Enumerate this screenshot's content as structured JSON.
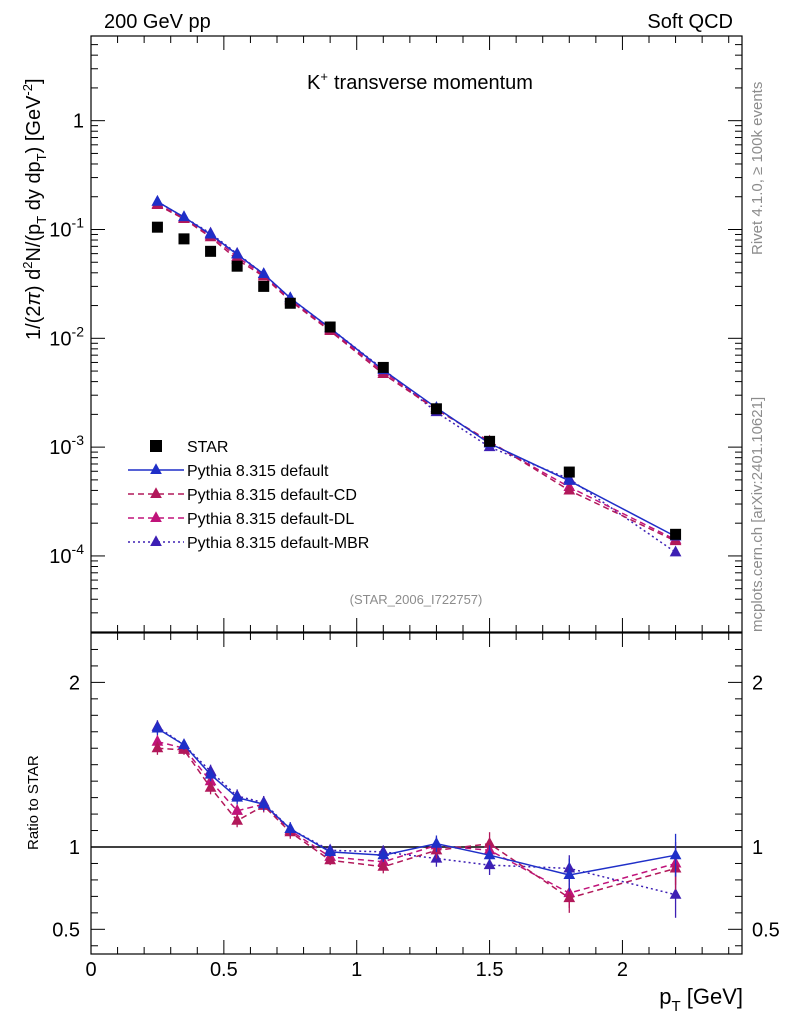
{
  "header": {
    "left_label": "200 GeV pp",
    "right_label": "Soft QCD",
    "title_particle": "K",
    "title_charge": "+",
    "title_rest": "transverse momentum",
    "analysis_id": "(STAR_2006_I722757)",
    "side_label_top": "Rivet 4.1.0, ≥ 100k events",
    "side_label_bottom": "mcplots.cern.ch [arXiv:2401.10621]"
  },
  "axes": {
    "top_ylabel": "1/(2π)  d²N/(p_T dy dp_T) [GeV⁻²]",
    "bottom_ylabel": "Ratio to STAR",
    "xlabel": "p_T [GeV]"
  },
  "chart_data": [
    {
      "type": "scatter",
      "panel": "main",
      "yscale": "log",
      "xlim": [
        0,
        2.45
      ],
      "ylim": [
        2e-05,
        6
      ],
      "x_ticks": [
        0,
        0.5,
        1,
        1.5,
        2
      ],
      "y_ticks": [
        "10^-4",
        "10^-3",
        "10^-2",
        "10^-1",
        "1"
      ],
      "x": [
        0.25,
        0.35,
        0.45,
        0.55,
        0.65,
        0.75,
        0.9,
        1.1,
        1.3,
        1.5,
        1.8,
        2.2
      ],
      "series": [
        {
          "name": "STAR",
          "style": "square",
          "color": "#000000",
          "values": [
            0.105,
            0.082,
            0.063,
            0.046,
            0.03,
            0.021,
            0.0127,
            0.0054,
            0.00225,
            0.00113,
            0.00059,
            0.000158
          ]
        },
        {
          "name": "Pythia 8.315 default",
          "style": "solid",
          "color": "#1f2fc8",
          "values": [
            0.18,
            0.13,
            0.09,
            0.059,
            0.039,
            0.0234,
            0.0124,
            0.0051,
            0.0023,
            0.00108,
            0.00049,
            0.000151
          ]
        },
        {
          "name": "Pythia 8.315 default-CD",
          "style": "dashed",
          "color": "#b2185a",
          "values": [
            0.168,
            0.125,
            0.085,
            0.053,
            0.037,
            0.022,
            0.0117,
            0.0047,
            0.00221,
            0.00113,
            0.0004,
            0.000137
          ]
        },
        {
          "name": "Pythia 8.315 default-DL",
          "style": "dashed",
          "color": "#c0137a",
          "values": [
            0.171,
            0.127,
            0.088,
            0.056,
            0.038,
            0.0226,
            0.012,
            0.0049,
            0.00227,
            0.0011,
            0.00043,
            0.000141
          ]
        },
        {
          "name": "Pythia 8.315 default-MBR",
          "style": "dotted",
          "color": "#3d1fb4",
          "values": [
            0.18,
            0.13,
            0.092,
            0.06,
            0.039,
            0.0234,
            0.0124,
            0.0052,
            0.0021,
            0.001,
            0.00051,
            0.000108
          ]
        }
      ]
    },
    {
      "type": "scatter",
      "panel": "ratio",
      "ylabel": "Ratio to STAR",
      "xlim": [
        0,
        2.45
      ],
      "ylim": [
        0.35,
        2.3
      ],
      "x_ticks": [
        0,
        0.5,
        1,
        1.5,
        2
      ],
      "y_ticks": [
        0.5,
        1,
        2
      ],
      "reference": 1,
      "x": [
        0.25,
        0.35,
        0.45,
        0.55,
        0.65,
        0.75,
        0.9,
        1.1,
        1.3,
        1.5,
        1.8,
        2.2
      ],
      "series": [
        {
          "name": "Pythia 8.315 default",
          "style": "solid",
          "color": "#1f2fc8",
          "values": [
            1.72,
            1.62,
            1.44,
            1.3,
            1.26,
            1.11,
            0.97,
            0.95,
            1.02,
            0.95,
            0.83,
            0.95
          ],
          "errors": [
            0.04,
            0.03,
            0.04,
            0.04,
            0.04,
            0.04,
            0.03,
            0.04,
            0.05,
            0.06,
            0.1,
            0.13
          ]
        },
        {
          "name": "Pythia 8.315 default-CD",
          "style": "dashed",
          "color": "#b2185a",
          "values": [
            1.6,
            1.59,
            1.36,
            1.16,
            1.25,
            1.09,
            0.92,
            0.88,
            0.98,
            1.02,
            0.69,
            0.87
          ],
          "errors": [
            0.04,
            0.03,
            0.04,
            0.04,
            0.04,
            0.04,
            0.03,
            0.04,
            0.05,
            0.07,
            0.09,
            0.13
          ]
        },
        {
          "name": "Pythia 8.315 default-DL",
          "style": "dashed",
          "color": "#c0137a",
          "values": [
            1.64,
            1.6,
            1.4,
            1.22,
            1.26,
            1.1,
            0.94,
            0.91,
            1.01,
            0.98,
            0.72,
            0.9
          ],
          "errors": [
            0.04,
            0.03,
            0.04,
            0.04,
            0.04,
            0.04,
            0.03,
            0.04,
            0.05,
            0.07,
            0.09,
            0.13
          ]
        },
        {
          "name": "Pythia 8.315 default-MBR",
          "style": "dotted",
          "color": "#3d1fb4",
          "values": [
            1.73,
            1.62,
            1.46,
            1.31,
            1.27,
            1.11,
            0.98,
            0.97,
            0.93,
            0.89,
            0.87,
            0.71
          ],
          "errors": [
            0.04,
            0.03,
            0.04,
            0.04,
            0.04,
            0.04,
            0.03,
            0.04,
            0.05,
            0.06,
            0.08,
            0.14
          ]
        }
      ]
    }
  ]
}
